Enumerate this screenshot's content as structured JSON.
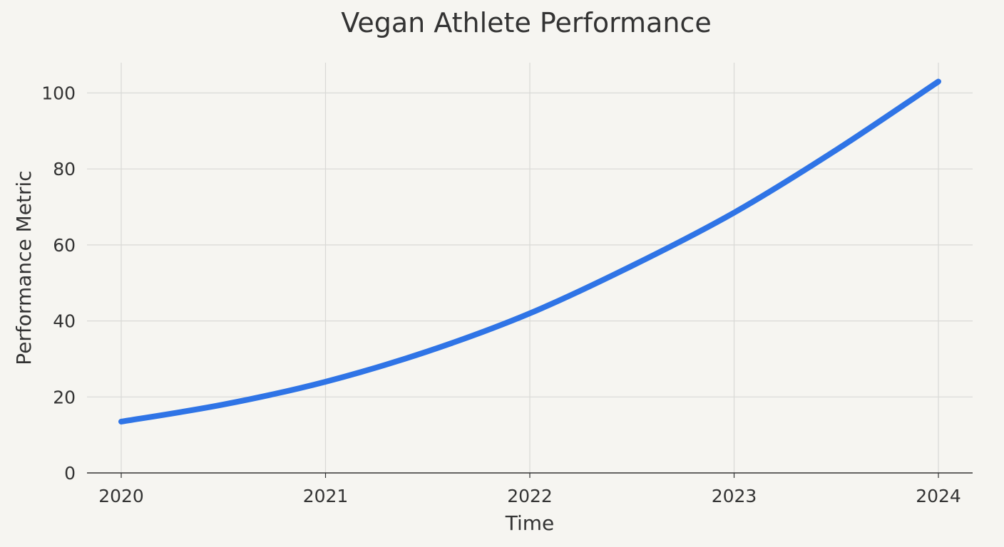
{
  "chart_data": {
    "type": "line",
    "title": "Vegan Athlete Performance",
    "xlabel": "Time",
    "ylabel": "Performance Metric",
    "xlim": [
      2020,
      2024
    ],
    "ylim": [
      0,
      108
    ],
    "x_ticks": [
      "2020",
      "2021",
      "2022",
      "2023",
      "2024"
    ],
    "y_ticks": [
      "0",
      "20",
      "40",
      "60",
      "80",
      "100"
    ],
    "grid": true,
    "legend": "none",
    "series": [
      {
        "color": "#2f74e6",
        "x": [
          2020,
          2020.5,
          2021,
          2021.5,
          2022,
          2022.5,
          2023,
          2023.5,
          2024
        ],
        "y": [
          13.5,
          18,
          24,
          32,
          42,
          54.5,
          68.5,
          85,
          103
        ]
      }
    ]
  },
  "colors": {
    "background": "#f6f5f1",
    "grid": "#d9d9d6",
    "axis": "#333333",
    "line": "#2f74e6"
  }
}
